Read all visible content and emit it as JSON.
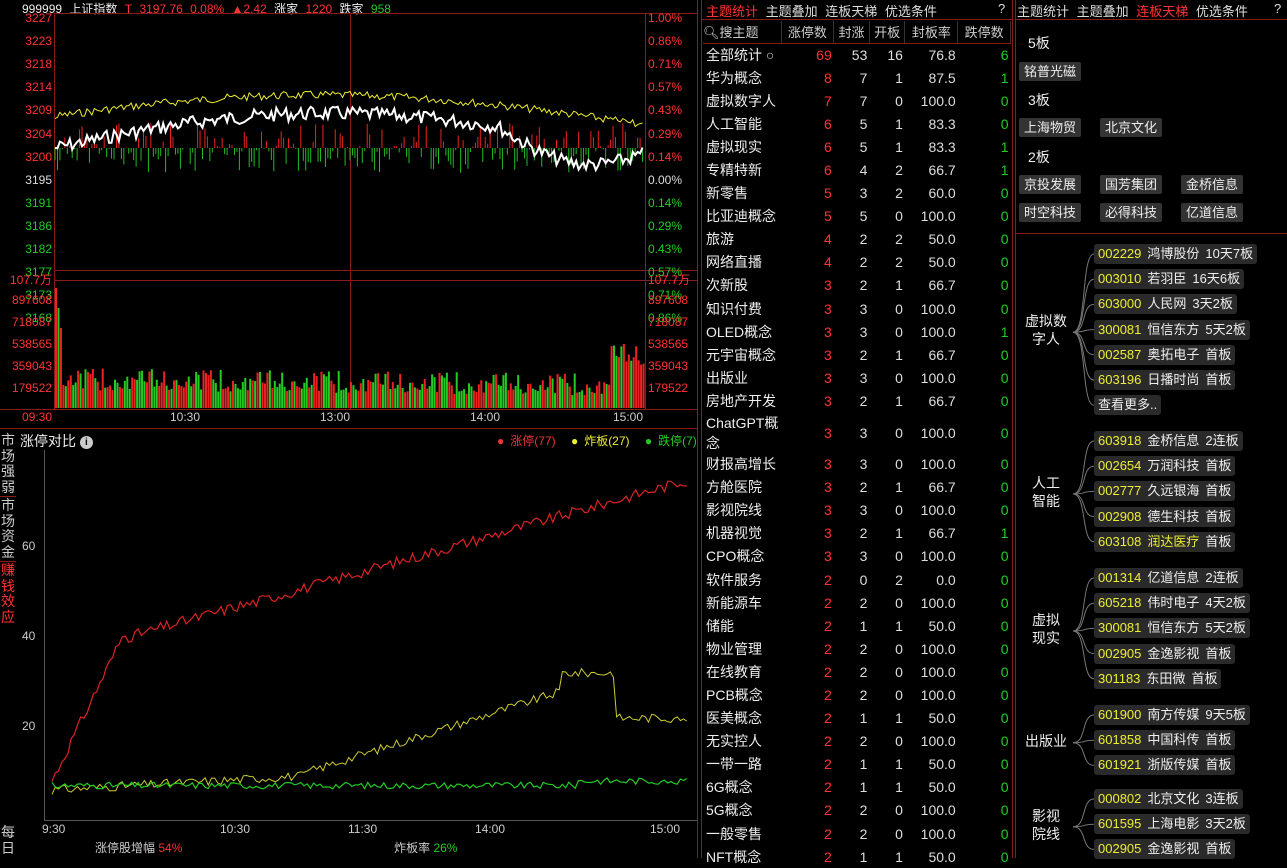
{
  "index_header": {
    "code": "999999",
    "name": "上证指数",
    "t_label": "T",
    "price": "3197.76",
    "pct": "0.08%",
    "chg": "▲2.42",
    "up_label": "涨家",
    "up_count": "1220",
    "down_label": "跌家",
    "down_count": "958"
  },
  "price_axis": {
    "left": [
      "3227",
      "3223",
      "3218",
      "3214",
      "3209",
      "3204",
      "3200",
      "3195",
      "3191",
      "3186",
      "3182",
      "3177",
      "3173",
      "3168"
    ],
    "right": [
      "1.00%",
      "0.86%",
      "0.71%",
      "0.57%",
      "0.43%",
      "0.29%",
      "0.14%",
      "0.00%",
      "0.14%",
      "0.29%",
      "0.43%",
      "0.57%",
      "0.71%",
      "0.86%"
    ]
  },
  "volume_axis": {
    "labels": [
      "107.7万",
      "897608",
      "718087",
      "538565",
      "359043",
      "179522"
    ]
  },
  "time_axis": [
    "09:30",
    "10:30",
    "13:00",
    "14:00",
    "15:00"
  ],
  "side_tabs": [
    "市场强弱",
    "市场资金",
    "赚钱效应",
    "每日"
  ],
  "zt_panel": {
    "title": "涨停对比",
    "legend": [
      {
        "label": "涨停(77)",
        "color": "#e33"
      },
      {
        "label": "炸板(27)",
        "color": "#ee3"
      },
      {
        "label": "跌停(7)",
        "color": "#2c2"
      }
    ],
    "yticks": [
      "60",
      "40",
      "20"
    ],
    "xticks": [
      "9:30",
      "10:30",
      "11:30",
      "14:00",
      "15:00"
    ],
    "stat1_label": "涨停股增幅",
    "stat1_value": "54%",
    "stat2_label": "炸板率",
    "stat2_value": "26%"
  },
  "mid_tabs": [
    "主题统计",
    "主题叠加",
    "连板天梯",
    "优选条件"
  ],
  "mid_help": "?",
  "table": {
    "headers": [
      "搜主题",
      "涨停数",
      "封涨",
      "开板",
      "封板率",
      "跌停数"
    ],
    "rows": [
      [
        "全部统计",
        "69",
        "53",
        "16",
        "76.8",
        "6"
      ],
      [
        "华为概念",
        "8",
        "7",
        "1",
        "87.5",
        "1"
      ],
      [
        "虚拟数字人",
        "7",
        "7",
        "0",
        "100.0",
        "0"
      ],
      [
        "人工智能",
        "6",
        "5",
        "1",
        "83.3",
        "0"
      ],
      [
        "虚拟现实",
        "6",
        "5",
        "1",
        "83.3",
        "1"
      ],
      [
        "专精特新",
        "6",
        "4",
        "2",
        "66.7",
        "1"
      ],
      [
        "新零售",
        "5",
        "3",
        "2",
        "60.0",
        "0"
      ],
      [
        "比亚迪概念",
        "5",
        "5",
        "0",
        "100.0",
        "0"
      ],
      [
        "旅游",
        "4",
        "2",
        "2",
        "50.0",
        "0"
      ],
      [
        "网络直播",
        "4",
        "2",
        "2",
        "50.0",
        "0"
      ],
      [
        "次新股",
        "3",
        "2",
        "1",
        "66.7",
        "0"
      ],
      [
        "知识付费",
        "3",
        "3",
        "0",
        "100.0",
        "0"
      ],
      [
        "OLED概念",
        "3",
        "3",
        "0",
        "100.0",
        "1"
      ],
      [
        "元宇宙概念",
        "3",
        "2",
        "1",
        "66.7",
        "0"
      ],
      [
        "出版业",
        "3",
        "3",
        "0",
        "100.0",
        "0"
      ],
      [
        "房地产开发",
        "3",
        "2",
        "1",
        "66.7",
        "0"
      ],
      [
        "ChatGPT概念",
        "3",
        "3",
        "0",
        "100.0",
        "0"
      ],
      [
        "财报高增长",
        "3",
        "3",
        "0",
        "100.0",
        "0"
      ],
      [
        "方舱医院",
        "3",
        "2",
        "1",
        "66.7",
        "0"
      ],
      [
        "影视院线",
        "3",
        "3",
        "0",
        "100.0",
        "0"
      ],
      [
        "机器视觉",
        "3",
        "2",
        "1",
        "66.7",
        "1"
      ],
      [
        "CPO概念",
        "3",
        "3",
        "0",
        "100.0",
        "0"
      ],
      [
        "软件服务",
        "2",
        "0",
        "2",
        "0.0",
        "0"
      ],
      [
        "新能源车",
        "2",
        "2",
        "0",
        "100.0",
        "0"
      ],
      [
        "储能",
        "2",
        "1",
        "1",
        "50.0",
        "0"
      ],
      [
        "物业管理",
        "2",
        "2",
        "0",
        "100.0",
        "0"
      ],
      [
        "在线教育",
        "2",
        "2",
        "0",
        "100.0",
        "0"
      ],
      [
        "PCB概念",
        "2",
        "2",
        "0",
        "100.0",
        "0"
      ],
      [
        "医美概念",
        "2",
        "1",
        "1",
        "50.0",
        "0"
      ],
      [
        "无实控人",
        "2",
        "2",
        "0",
        "100.0",
        "0"
      ],
      [
        "一带一路",
        "2",
        "1",
        "1",
        "50.0",
        "0"
      ],
      [
        "6G概念",
        "2",
        "1",
        "1",
        "50.0",
        "0"
      ],
      [
        "5G概念",
        "2",
        "2",
        "0",
        "100.0",
        "0"
      ],
      [
        "一般零售",
        "2",
        "2",
        "0",
        "100.0",
        "0"
      ],
      [
        "NFT概念",
        "2",
        "1",
        "1",
        "50.0",
        "0"
      ]
    ]
  },
  "right_tabs": [
    "主题统计",
    "主题叠加",
    "连板天梯",
    "优选条件"
  ],
  "right_help": "?",
  "ladder": [
    {
      "level": "5板",
      "stocks": [
        "铭普光磁"
      ]
    },
    {
      "level": "3板",
      "stocks": [
        "上海物贸",
        "北京文化"
      ]
    },
    {
      "level": "2板",
      "stocks": [
        "京投发展",
        "国芳集团",
        "金桥信息",
        "时空科技",
        "必得科技",
        "亿道信息"
      ]
    }
  ],
  "groups": [
    {
      "name": "虚拟数字人",
      "stocks": [
        [
          "002229",
          "鸿博股份",
          "10天7板"
        ],
        [
          "003010",
          "若羽臣",
          "16天6板"
        ],
        [
          "603000",
          "人民网",
          "3天2板"
        ],
        [
          "300081",
          "恒信东方",
          "5天2板"
        ],
        [
          "002587",
          "奥拓电子",
          "首板"
        ],
        [
          "603196",
          "日播时尚",
          "首板"
        ]
      ],
      "more": "查看更多.."
    },
    {
      "name": "人工智能",
      "stocks": [
        [
          "603918",
          "金桥信息",
          "2连板"
        ],
        [
          "002654",
          "万润科技",
          "首板"
        ],
        [
          "002777",
          "久远银海",
          "首板"
        ],
        [
          "002908",
          "德生科技",
          "首板"
        ],
        [
          "603108",
          "润达医疗",
          "首板"
        ]
      ]
    },
    {
      "name": "虚拟现实",
      "stocks": [
        [
          "001314",
          "亿道信息",
          "2连板"
        ],
        [
          "605218",
          "伟时电子",
          "4天2板"
        ],
        [
          "300081",
          "恒信东方",
          "5天2板"
        ],
        [
          "002905",
          "金逸影视",
          "首板"
        ],
        [
          "301183",
          "东田微",
          "首板"
        ]
      ]
    },
    {
      "name": "出版业",
      "stocks": [
        [
          "601900",
          "南方传媒",
          "9天5板"
        ],
        [
          "601858",
          "中国科传",
          "首板"
        ],
        [
          "601921",
          "浙版传媒",
          "首板"
        ]
      ]
    },
    {
      "name": "影视院线",
      "stocks": [
        [
          "000802",
          "北京文化",
          "3连板"
        ],
        [
          "601595",
          "上海电影",
          "3天2板"
        ],
        [
          "002905",
          "金逸影视",
          "首板"
        ]
      ]
    }
  ]
}
